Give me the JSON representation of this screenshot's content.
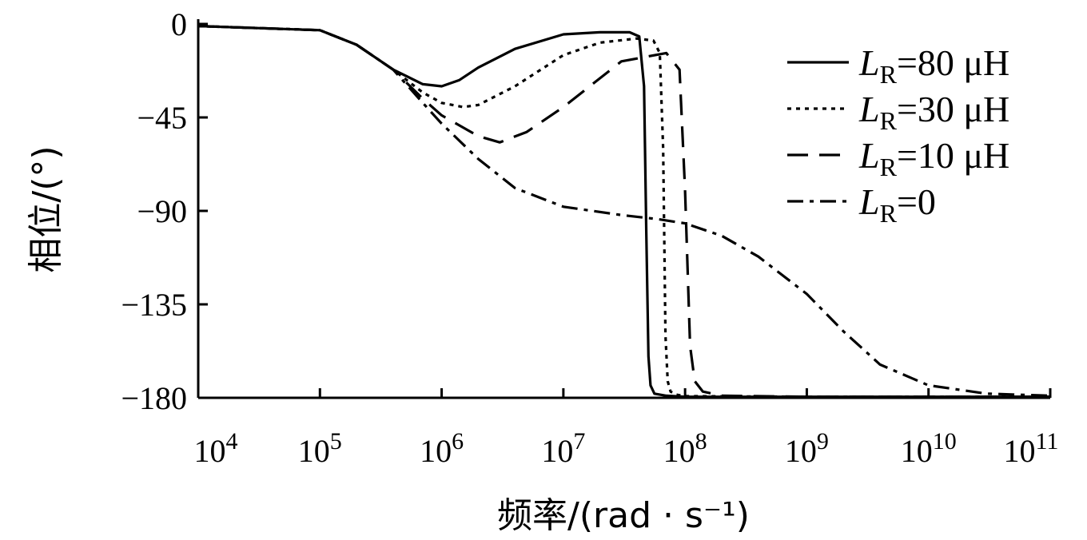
{
  "chart_data": {
    "type": "line",
    "title": "",
    "xlabel": "频率/(rad · s⁻¹)",
    "ylabel": "相位/(°)",
    "x_scale": "log",
    "xlim": [
      10000,
      100000000000
    ],
    "ylim": [
      -180,
      0
    ],
    "yticks": [
      0,
      -45,
      -90,
      -135,
      -180
    ],
    "ytick_labels": [
      "0",
      "−45",
      "−90",
      "−135",
      "−180"
    ],
    "xticks": [
      10000,
      100000,
      1000000,
      10000000,
      100000000,
      1000000000,
      10000000000,
      100000000000
    ],
    "xtick_labels": [
      {
        "base": "10",
        "exp": "4"
      },
      {
        "base": "10",
        "exp": "5"
      },
      {
        "base": "10",
        "exp": "6"
      },
      {
        "base": "10",
        "exp": "7"
      },
      {
        "base": "10",
        "exp": "8"
      },
      {
        "base": "10",
        "exp": "9"
      },
      {
        "base": "10",
        "exp": "10"
      },
      {
        "base": "10",
        "exp": "11"
      }
    ],
    "grid": false,
    "legend_position": "top-right",
    "series": [
      {
        "name": {
          "sym": "L",
          "sub": "R",
          "rest": "=80 μH"
        },
        "style": "solid",
        "x": [
          10000,
          100000,
          200000,
          400000,
          700000,
          1000000,
          1400000,
          2000000,
          4000000,
          10000000,
          20000000,
          35000000,
          42000000,
          46000000,
          48000000,
          50000000,
          52000000,
          56000000,
          70000000,
          100000000,
          1000000000,
          100000000000
        ],
        "y": [
          -1,
          -3,
          -10,
          -22,
          -29,
          -30,
          -27,
          -21,
          -12,
          -5,
          -4,
          -4,
          -6,
          -30,
          -100,
          -160,
          -174,
          -178,
          -179,
          -179.5,
          -179.5,
          -179.5
        ]
      },
      {
        "name": {
          "sym": "L",
          "sub": "R",
          "rest": "=30 μH"
        },
        "style": "dotted",
        "x": [
          10000,
          100000,
          200000,
          400000,
          700000,
          1000000,
          1500000,
          2000000,
          4000000,
          10000000,
          20000000,
          40000000,
          55000000,
          62000000,
          66000000,
          69000000,
          72000000,
          76000000,
          85000000,
          100000000,
          1000000000,
          100000000000
        ],
        "y": [
          -1,
          -3,
          -10,
          -22,
          -33,
          -38,
          -40,
          -39,
          -30,
          -15,
          -9,
          -7,
          -8,
          -14,
          -60,
          -150,
          -172,
          -177,
          -178.5,
          -179.2,
          -179.5,
          -179.5
        ]
      },
      {
        "name": {
          "sym": "L",
          "sub": "R",
          "rest": "=10 μH"
        },
        "style": "dashed",
        "x": [
          10000,
          100000,
          200000,
          400000,
          700000,
          1000000,
          2000000,
          3000000,
          5000000,
          10000000,
          30000000,
          70000000,
          90000000,
          100000000,
          110000000,
          120000000,
          140000000,
          200000000,
          1000000000,
          100000000000
        ],
        "y": [
          -1,
          -3,
          -10,
          -22,
          -36,
          -44,
          -54,
          -57,
          -52,
          -40,
          -18,
          -14,
          -22,
          -80,
          -155,
          -172,
          -177,
          -179,
          -179.5,
          -179.5
        ]
      },
      {
        "name": {
          "sym": "L",
          "sub": "R",
          "rest": "=0"
        },
        "style": "dashdot",
        "x": [
          10000,
          100000,
          200000,
          400000,
          700000,
          1000000,
          2000000,
          4000000,
          10000000,
          30000000,
          60000000,
          100000000,
          200000000,
          400000000,
          1000000000,
          2000000000,
          4000000000,
          10000000000,
          30000000000,
          100000000000
        ],
        "y": [
          -1,
          -3,
          -10,
          -22,
          -38,
          -48,
          -65,
          -79,
          -88,
          -92,
          -94,
          -96,
          -102,
          -112,
          -130,
          -148,
          -164,
          -174,
          -178,
          -179
        ]
      }
    ]
  }
}
